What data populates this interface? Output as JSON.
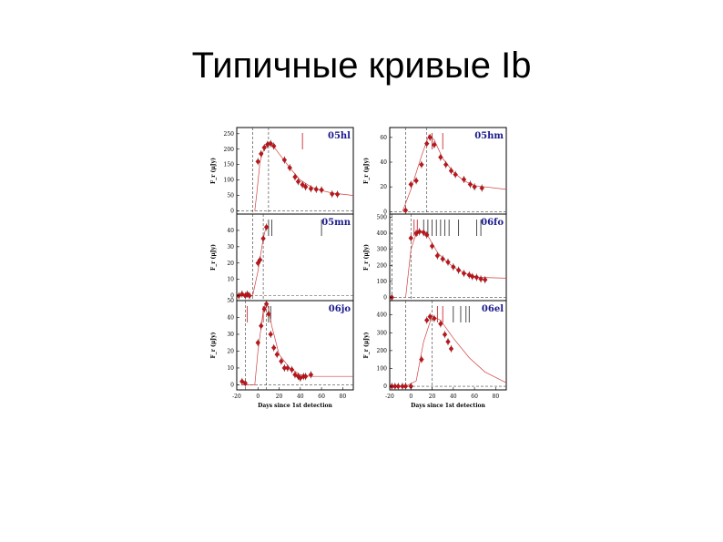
{
  "slide": {
    "title": "Типичные кривые Ib"
  },
  "colors": {
    "data": "#c0141a",
    "model": "#d04040",
    "name": "#1a1a8c"
  },
  "chart_data": [
    {
      "type": "scatter",
      "name": "05hl",
      "ylabel": "F_r (μJy)",
      "xlim": [
        -20,
        90
      ],
      "ylim": [
        -10,
        270
      ],
      "yticks": [
        0,
        50,
        100,
        150,
        200,
        250
      ],
      "xticks": [],
      "xlabel": "",
      "points": [
        [
          0,
          160
        ],
        [
          3,
          185
        ],
        [
          6,
          205
        ],
        [
          9,
          215
        ],
        [
          12,
          218
        ],
        [
          15,
          210
        ],
        [
          25,
          165
        ],
        [
          30,
          140
        ],
        [
          35,
          110
        ],
        [
          38,
          95
        ],
        [
          42,
          85
        ],
        [
          45,
          78
        ],
        [
          50,
          72
        ],
        [
          55,
          70
        ],
        [
          60,
          68
        ],
        [
          70,
          55
        ],
        [
          75,
          54
        ]
      ],
      "model": [
        [
          -3,
          0
        ],
        [
          -1,
          60
        ],
        [
          2,
          160
        ],
        [
          6,
          205
        ],
        [
          10,
          218
        ],
        [
          14,
          212
        ],
        [
          20,
          185
        ],
        [
          30,
          140
        ],
        [
          40,
          100
        ],
        [
          50,
          78
        ],
        [
          60,
          66
        ],
        [
          70,
          58
        ],
        [
          90,
          50
        ]
      ],
      "dashed_v": [
        -5,
        10
      ],
      "dashed_h": 0,
      "marks_red": [
        42
      ],
      "marks_black": []
    },
    {
      "type": "scatter",
      "name": "05hm",
      "ylabel": "F_r (μJy)",
      "xlim": [
        -20,
        90
      ],
      "ylim": [
        -2,
        68
      ],
      "yticks": [
        0,
        20,
        40,
        60
      ],
      "xticks": [],
      "xlabel": "",
      "points": [
        [
          -5,
          1
        ],
        [
          0,
          22
        ],
        [
          5,
          25
        ],
        [
          10,
          38
        ],
        [
          15,
          55
        ],
        [
          18,
          60
        ],
        [
          22,
          54
        ],
        [
          28,
          44
        ],
        [
          33,
          38
        ],
        [
          38,
          33
        ],
        [
          42,
          30
        ],
        [
          50,
          26
        ],
        [
          56,
          22
        ],
        [
          60,
          20
        ],
        [
          67,
          19
        ]
      ],
      "model": [
        [
          -8,
          0
        ],
        [
          0,
          18
        ],
        [
          10,
          45
        ],
        [
          17,
          62
        ],
        [
          22,
          58
        ],
        [
          30,
          43
        ],
        [
          40,
          32
        ],
        [
          50,
          25
        ],
        [
          60,
          21
        ],
        [
          90,
          18
        ]
      ],
      "dashed_v": [
        -5,
        15
      ],
      "dashed_h": 0,
      "marks_red": [
        20,
        30
      ],
      "marks_black": []
    },
    {
      "type": "scatter",
      "name": "05mn",
      "ylabel": "F_r (μJy)",
      "xlim": [
        -20,
        90
      ],
      "ylim": [
        -3,
        50
      ],
      "yticks": [
        0,
        10,
        20,
        30,
        40
      ],
      "xticks": [],
      "xlabel": "",
      "points": [
        [
          -18,
          0
        ],
        [
          -15,
          1
        ],
        [
          -12,
          0
        ],
        [
          -10,
          1
        ],
        [
          -8,
          0
        ],
        [
          0,
          20
        ],
        [
          2,
          22
        ],
        [
          5,
          35
        ],
        [
          8,
          42
        ]
      ],
      "model": [
        [
          -20,
          0
        ],
        [
          -5,
          0
        ],
        [
          0,
          15
        ],
        [
          5,
          35
        ],
        [
          8,
          43
        ]
      ],
      "dashed_v": [
        -5,
        5
      ],
      "dashed_h": 0,
      "marks_red": [],
      "marks_black": [
        10,
        13,
        60
      ]
    },
    {
      "type": "scatter",
      "name": "06fo",
      "ylabel": "F_r (μJy)",
      "xlim": [
        -20,
        90
      ],
      "ylim": [
        -20,
        520
      ],
      "yticks": [
        0,
        100,
        200,
        300,
        400,
        500
      ],
      "xticks": [],
      "xlabel": "",
      "points": [
        [
          -18,
          0
        ],
        [
          0,
          370
        ],
        [
          5,
          400
        ],
        [
          8,
          410
        ],
        [
          12,
          405
        ],
        [
          15,
          390
        ],
        [
          20,
          320
        ],
        [
          25,
          260
        ],
        [
          30,
          240
        ],
        [
          35,
          220
        ],
        [
          40,
          190
        ],
        [
          45,
          170
        ],
        [
          50,
          150
        ],
        [
          55,
          140
        ],
        [
          58,
          130
        ],
        [
          62,
          125
        ],
        [
          66,
          115
        ],
        [
          70,
          110
        ]
      ],
      "model": [
        [
          -5,
          0
        ],
        [
          0,
          300
        ],
        [
          5,
          400
        ],
        [
          10,
          415
        ],
        [
          15,
          395
        ],
        [
          25,
          280
        ],
        [
          35,
          215
        ],
        [
          45,
          170
        ],
        [
          55,
          140
        ],
        [
          65,
          125
        ],
        [
          90,
          120
        ]
      ],
      "dashed_v": [
        -18,
        0
      ],
      "dashed_h": 0,
      "marks_red": [
        3,
        6
      ],
      "marks_black": [
        12,
        16,
        20,
        24,
        28,
        32,
        36,
        45,
        62,
        66
      ]
    },
    {
      "type": "scatter",
      "name": "06jo",
      "ylabel": "F_r (μJy)",
      "xlim": [
        -20,
        90
      ],
      "ylim": [
        -3,
        50
      ],
      "yticks": [
        0,
        10,
        20,
        30,
        40,
        50
      ],
      "xticks": [
        -20,
        0,
        20,
        40,
        60,
        80
      ],
      "xlabel": "Days since 1st detection",
      "points": [
        [
          -15,
          2
        ],
        [
          -12,
          1
        ],
        [
          0,
          25
        ],
        [
          3,
          35
        ],
        [
          6,
          45
        ],
        [
          8,
          48
        ],
        [
          10,
          42
        ],
        [
          12,
          30
        ],
        [
          15,
          22
        ],
        [
          18,
          18
        ],
        [
          22,
          14
        ],
        [
          25,
          10
        ],
        [
          28,
          10
        ],
        [
          32,
          9
        ],
        [
          35,
          6
        ],
        [
          38,
          5
        ],
        [
          40,
          4
        ],
        [
          43,
          5
        ],
        [
          45,
          5
        ],
        [
          50,
          6
        ]
      ],
      "model": [
        [
          -15,
          0
        ],
        [
          -3,
          0
        ],
        [
          0,
          20
        ],
        [
          5,
          44
        ],
        [
          9,
          48
        ],
        [
          13,
          35
        ],
        [
          20,
          18
        ],
        [
          30,
          10
        ],
        [
          40,
          6
        ],
        [
          50,
          5
        ],
        [
          90,
          5
        ]
      ],
      "dashed_v": [
        -12,
        8
      ],
      "dashed_h": 0,
      "marks_red": [
        -10,
        5
      ],
      "marks_black": [
        10,
        12
      ]
    },
    {
      "type": "scatter",
      "name": "06el",
      "ylabel": "F_r (μJy)",
      "xlim": [
        -20,
        90
      ],
      "ylim": [
        -20,
        480
      ],
      "yticks": [
        0,
        100,
        200,
        300,
        400
      ],
      "xticks": [
        -20,
        0,
        20,
        40,
        60,
        80
      ],
      "xlabel": "Days since 1st detection",
      "points": [
        [
          -18,
          0
        ],
        [
          -15,
          0
        ],
        [
          -12,
          0
        ],
        [
          -8,
          0
        ],
        [
          -5,
          0
        ],
        [
          0,
          0
        ],
        [
          10,
          150
        ],
        [
          15,
          370
        ],
        [
          18,
          390
        ],
        [
          22,
          380
        ],
        [
          28,
          350
        ],
        [
          32,
          290
        ],
        [
          35,
          250
        ],
        [
          38,
          210
        ]
      ],
      "model": [
        [
          -5,
          0
        ],
        [
          5,
          30
        ],
        [
          12,
          250
        ],
        [
          20,
          395
        ],
        [
          28,
          370
        ],
        [
          40,
          270
        ],
        [
          55,
          160
        ],
        [
          70,
          80
        ],
        [
          90,
          20
        ]
      ],
      "dashed_v": [
        -5,
        20
      ],
      "dashed_h": 0,
      "marks_red": [
        25,
        30
      ],
      "marks_black": [
        40,
        47,
        52,
        55
      ]
    }
  ]
}
